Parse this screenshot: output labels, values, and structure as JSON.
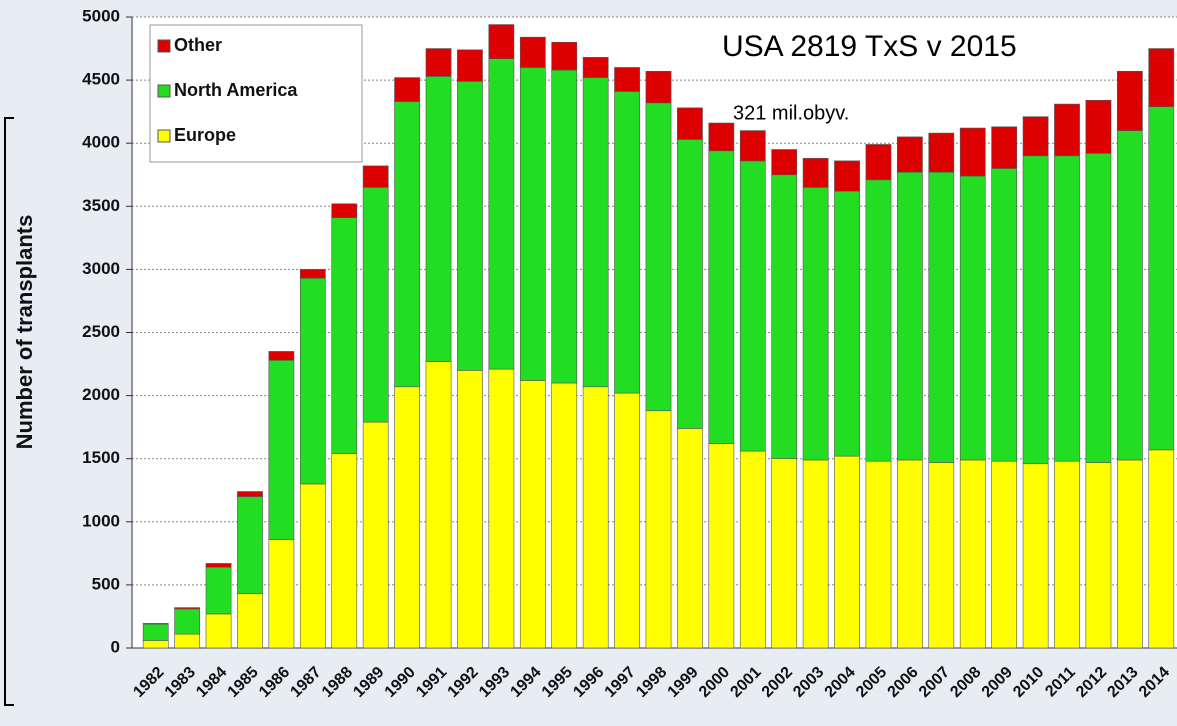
{
  "chart_data": {
    "type": "stacked_bar",
    "y_label": "Number of transplants",
    "annotations": [
      "USA 2819 TxS v 2015",
      "321 mil.obyv."
    ],
    "categories": [
      "1982",
      "1983",
      "1984",
      "1985",
      "1986",
      "1987",
      "1988",
      "1989",
      "1990",
      "1991",
      "1992",
      "1993",
      "1994",
      "1995",
      "1996",
      "1997",
      "1998",
      "1999",
      "2000",
      "2001",
      "2002",
      "2003",
      "2004",
      "2005",
      "2006",
      "2007",
      "2008",
      "2009",
      "2010",
      "2011",
      "2012",
      "2013",
      "2014"
    ],
    "series": [
      {
        "name": "Europe",
        "color": "#ffff00",
        "values": [
          60,
          110,
          270,
          430,
          860,
          1300,
          1540,
          1790,
          2070,
          2270,
          2200,
          2210,
          2120,
          2100,
          2070,
          2020,
          1880,
          1740,
          1620,
          1560,
          1500,
          1490,
          1520,
          1480,
          1490,
          1470,
          1490,
          1480,
          1460,
          1480,
          1470,
          1490,
          1570
        ]
      },
      {
        "name": "North America",
        "color": "#22dd22",
        "values": [
          130,
          200,
          370,
          770,
          1420,
          1630,
          1870,
          1860,
          2260,
          2260,
          2290,
          2460,
          2480,
          2480,
          2450,
          2390,
          2440,
          2290,
          2320,
          2300,
          2250,
          2160,
          2100,
          2230,
          2280,
          2300,
          2250,
          2320,
          2440,
          2420,
          2450,
          2610,
          2720
        ]
      },
      {
        "name": "Other",
        "color": "#dd0000",
        "values": [
          5,
          10,
          30,
          40,
          70,
          70,
          110,
          170,
          190,
          220,
          250,
          270,
          240,
          220,
          160,
          190,
          250,
          250,
          220,
          240,
          200,
          230,
          240,
          280,
          280,
          310,
          380,
          330,
          310,
          410,
          420,
          470,
          460
        ]
      }
    ],
    "ylim": [
      0,
      5000
    ],
    "yticks": [
      0,
      500,
      1000,
      1500,
      2000,
      2500,
      3000,
      3500,
      4000,
      4500,
      5000
    ],
    "grid": true
  }
}
